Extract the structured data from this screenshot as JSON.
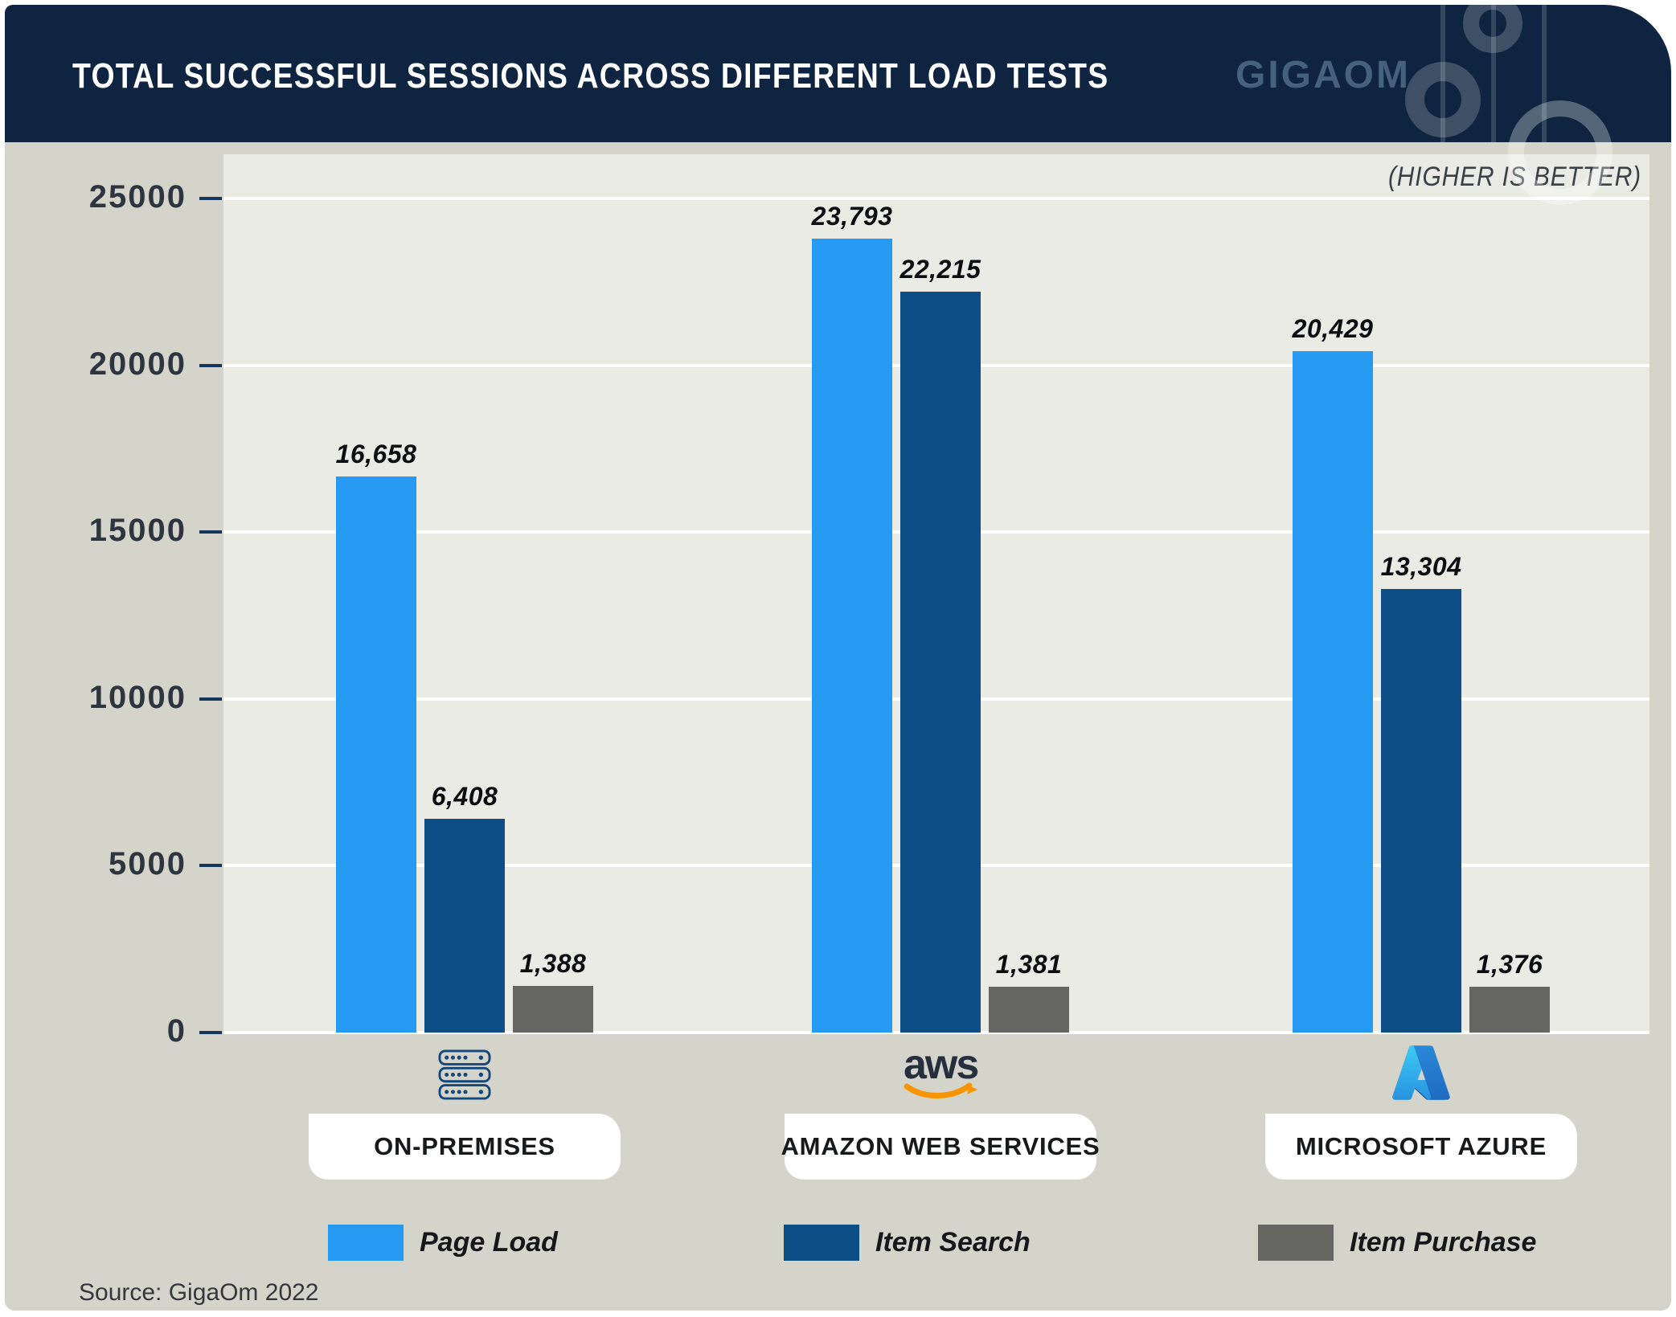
{
  "header": {
    "title": "TOTAL SUCCESSFUL SESSIONS ACROSS DIFFERENT LOAD TESTS",
    "brand": "GIGAOM"
  },
  "note": "(HIGHER IS BETTER)",
  "source": "Source: GigaOm 2022",
  "colors": {
    "header_bg": "#0e2440",
    "brand_text": "#46617e",
    "page_bg": "#d5d4cb",
    "plot_bg": "#ebebe6",
    "gridline": "#ffffff",
    "tick": "#16365c",
    "page_load": "#2699f2",
    "item_search": "#0d4e87",
    "item_purchase": "#666663",
    "aws_smile": "#f79400",
    "server_icon": "#14477c"
  },
  "chart_data": {
    "type": "bar",
    "title": "TOTAL SUCCESSFUL SESSIONS ACROSS DIFFERENT LOAD TESTS",
    "categories": [
      "ON-PREMISES",
      "AMAZON WEB SERVICES",
      "MICROSOFT AZURE"
    ],
    "category_icons": [
      "server-icon",
      "aws-logo",
      "azure-logo"
    ],
    "series": [
      {
        "name": "Page Load",
        "color": "#2699f2",
        "values": [
          16658,
          23793,
          20429
        ],
        "labels": [
          "16,658",
          "23,793",
          "20,429"
        ]
      },
      {
        "name": "Item Search",
        "color": "#0d4e87",
        "values": [
          6408,
          22215,
          13304
        ],
        "labels": [
          "6,408",
          "22,215",
          "13,304"
        ]
      },
      {
        "name": "Item Purchase",
        "color": "#666663",
        "values": [
          1388,
          1381,
          1376
        ],
        "labels": [
          "1,388",
          "1,381",
          "1,376"
        ]
      }
    ],
    "xlabel": "",
    "ylabel": "",
    "ylim": [
      0,
      25000
    ],
    "yticks": [
      0,
      5000,
      10000,
      15000,
      20000,
      25000
    ],
    "grid": "horizontal-white",
    "legend_position": "bottom",
    "annotation": "(HIGHER IS BETTER)"
  }
}
